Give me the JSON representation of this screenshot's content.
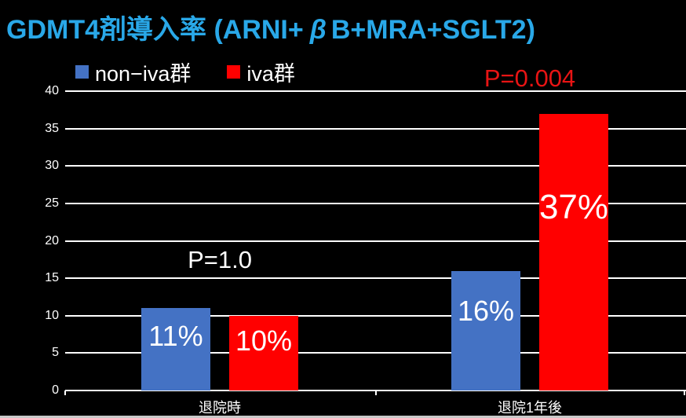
{
  "title": {
    "prefix": "GDMT4剤導入率 (ARNI+",
    "beta": "β",
    "suffix": "B+MRA+SGLT2)",
    "color": "#29a8e8"
  },
  "chart_data": {
    "type": "bar",
    "title": "GDMT4剤導入率 (ARNI+β B+MRA+SGLT2)",
    "categories": [
      "退院時",
      "退院1年後"
    ],
    "series": [
      {
        "name": "non−iva群",
        "color": "#4472c4",
        "values": [
          11,
          16
        ],
        "data_labels": [
          "11%",
          "16%"
        ]
      },
      {
        "name": "iva群",
        "color": "#ff0000",
        "values": [
          10,
          37
        ],
        "data_labels": [
          "10%",
          "37%"
        ]
      }
    ],
    "annotations": [
      {
        "text": "P=1.0",
        "color": "#ffffff",
        "group_index": 0
      },
      {
        "text": "P=0.004",
        "color": "#e81414",
        "group_index": 1
      }
    ],
    "ylim": [
      0,
      40
    ],
    "y_ticks": [
      0,
      5,
      10,
      15,
      20,
      25,
      30,
      35,
      40
    ],
    "grid": true,
    "gridline_color": "#ffffff",
    "background": "#000000",
    "text_color": "#ffffff",
    "legend_position": "top-left"
  }
}
